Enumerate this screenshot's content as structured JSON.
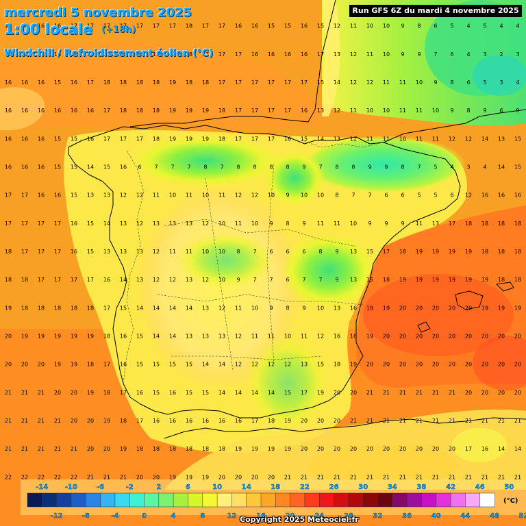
{
  "header": {
    "date_line": "mercredi 5 novembre 2025",
    "time_line": "1:00 locale",
    "lead_time": "(+18h)",
    "product_line": "Windchill / Refroidissement éolien (°C)",
    "run_info": "Run GFS 6Z du mardi 4 novembre 2025"
  },
  "footer": {
    "copyright": "Copyright 2025 Meteociel.fr"
  },
  "legend": {
    "unit": "(°C)",
    "upper_labels": [
      "-14",
      "-10",
      "-6",
      "-2",
      "2",
      "6",
      "10",
      "14",
      "18",
      "22",
      "26",
      "30",
      "34",
      "38",
      "42",
      "46",
      "50"
    ],
    "lower_labels": [
      "-12",
      "-8",
      "-4",
      "0",
      "4",
      "8",
      "12",
      "16",
      "20",
      "24",
      "28",
      "32",
      "36",
      "40",
      "44",
      "48",
      "52"
    ],
    "colors": [
      "#0a1a55",
      "#0c2d7a",
      "#123fa0",
      "#1a5ec6",
      "#2a83e6",
      "#35b4f5",
      "#3bd7f2",
      "#40f0d0",
      "#5cf5a0",
      "#7cf070",
      "#a8f040",
      "#d6f52a",
      "#f6f732",
      "#fff07a",
      "#ffe060",
      "#ffc83c",
      "#ffa526",
      "#ff8620",
      "#ff6420",
      "#ff3b1c",
      "#f01818",
      "#d20f0f",
      "#b00a0a",
      "#8e0606",
      "#6e0410",
      "#88086a",
      "#a00ca0",
      "#c810c8",
      "#e030e0",
      "#f070f0",
      "#f8a8f8",
      "#ffffff"
    ]
  },
  "chart_data": {
    "type": "heatmap",
    "variable": "Windchill / Refroidissement éolien (°C)",
    "grid_rows_sample": [
      [
        16,
        16,
        16,
        16,
        17,
        17,
        17,
        17,
        17,
        17,
        17,
        18,
        17,
        17,
        16,
        16,
        15,
        15,
        16,
        15,
        12,
        11,
        10,
        10,
        9,
        8,
        6,
        5,
        4,
        5,
        4,
        4
      ],
      [
        16,
        16,
        16,
        16,
        16,
        17,
        17,
        17,
        18,
        17,
        18,
        18,
        17,
        17,
        17,
        16,
        16,
        16,
        16,
        17,
        13,
        12,
        11,
        10,
        9,
        9,
        7,
        6,
        4,
        3,
        2,
        3
      ],
      [
        16,
        16,
        16,
        15,
        16,
        17,
        18,
        18,
        18,
        18,
        19,
        18,
        18,
        17,
        17,
        17,
        17,
        17,
        17,
        15,
        14,
        12,
        12,
        11,
        11,
        10,
        9,
        8,
        6,
        5,
        3,
        4
      ],
      [
        16,
        16,
        16,
        16,
        16,
        16,
        17,
        18,
        18,
        18,
        19,
        19,
        19,
        18,
        17,
        17,
        17,
        17,
        16,
        13,
        12,
        11,
        10,
        10,
        11,
        11,
        10,
        9,
        8,
        9,
        6,
        9
      ],
      [
        16,
        16,
        16,
        15,
        15,
        16,
        17,
        17,
        17,
        18,
        19,
        19,
        19,
        18,
        17,
        17,
        17,
        16,
        15,
        14,
        13,
        12,
        11,
        11,
        10,
        11,
        11,
        12,
        12,
        14,
        13,
        15
      ],
      [
        16,
        16,
        16,
        15,
        15,
        14,
        15,
        16,
        6,
        7,
        7,
        7,
        8,
        7,
        8,
        8,
        8,
        8,
        9,
        7,
        8,
        8,
        9,
        9,
        8,
        7,
        5,
        4,
        3,
        4,
        14,
        15
      ],
      [
        17,
        17,
        16,
        16,
        15,
        13,
        13,
        12,
        12,
        11,
        10,
        11,
        10,
        11,
        12,
        12,
        10,
        9,
        10,
        10,
        8,
        7,
        7,
        6,
        6,
        5,
        5,
        6,
        12,
        16,
        16,
        16
      ],
      [
        17,
        17,
        17,
        17,
        16,
        15,
        14,
        13,
        12,
        13,
        13,
        13,
        12,
        10,
        11,
        10,
        9,
        8,
        9,
        11,
        11,
        10,
        9,
        9,
        9,
        11,
        13,
        17,
        18,
        18,
        18,
        18
      ],
      [
        18,
        17,
        17,
        17,
        16,
        15,
        13,
        13,
        13,
        12,
        11,
        11,
        10,
        10,
        8,
        7,
        6,
        6,
        6,
        8,
        9,
        13,
        15,
        17,
        18,
        19,
        19,
        19,
        19,
        18,
        18,
        18
      ],
      [
        18,
        18,
        17,
        17,
        17,
        17,
        16,
        14,
        13,
        12,
        12,
        13,
        12,
        10,
        9,
        7,
        7,
        6,
        7,
        7,
        9,
        13,
        15,
        18,
        19,
        19,
        19,
        19,
        19,
        19,
        18,
        18
      ],
      [
        19,
        18,
        18,
        18,
        18,
        18,
        17,
        15,
        14,
        14,
        14,
        14,
        13,
        12,
        11,
        10,
        9,
        8,
        9,
        10,
        13,
        16,
        18,
        19,
        20,
        20,
        20,
        20,
        20,
        19,
        19,
        19
      ],
      [
        20,
        19,
        19,
        19,
        19,
        19,
        18,
        16,
        15,
        14,
        14,
        13,
        13,
        13,
        12,
        11,
        11,
        10,
        11,
        12,
        16,
        18,
        19,
        20,
        20,
        20,
        20,
        20,
        20,
        20,
        20,
        20
      ],
      [
        20,
        20,
        20,
        19,
        19,
        18,
        17,
        16,
        15,
        15,
        15,
        15,
        14,
        14,
        12,
        12,
        12,
        12,
        13,
        15,
        18,
        19,
        20,
        20,
        20,
        20,
        20,
        20,
        20,
        20,
        20,
        20
      ],
      [
        21,
        21,
        21,
        20,
        20,
        19,
        18,
        17,
        16,
        15,
        16,
        15,
        15,
        14,
        14,
        14,
        14,
        15,
        17,
        19,
        20,
        20,
        21,
        21,
        21,
        21,
        21,
        21,
        20,
        20,
        20,
        20
      ],
      [
        21,
        21,
        21,
        21,
        20,
        20,
        19,
        18,
        17,
        16,
        16,
        16,
        16,
        16,
        16,
        17,
        18,
        19,
        20,
        20,
        20,
        21,
        21,
        21,
        21,
        21,
        21,
        21,
        21,
        21,
        21,
        21
      ],
      [
        21,
        21,
        21,
        21,
        21,
        20,
        20,
        19,
        18,
        18,
        18,
        18,
        18,
        18,
        19,
        19,
        19,
        19,
        20,
        20,
        20,
        20,
        20,
        20,
        20,
        20,
        20,
        20,
        17,
        16,
        14,
        14
      ],
      [
        22,
        22,
        22,
        22,
        22,
        21,
        21,
        21,
        20,
        20,
        19,
        19,
        19,
        20,
        20,
        20,
        20,
        21,
        21,
        21,
        21,
        21,
        21,
        21,
        21,
        21,
        21,
        21,
        21,
        21,
        21,
        21
      ]
    ],
    "range": [
      -14,
      52
    ],
    "legend_position": "bottom"
  }
}
